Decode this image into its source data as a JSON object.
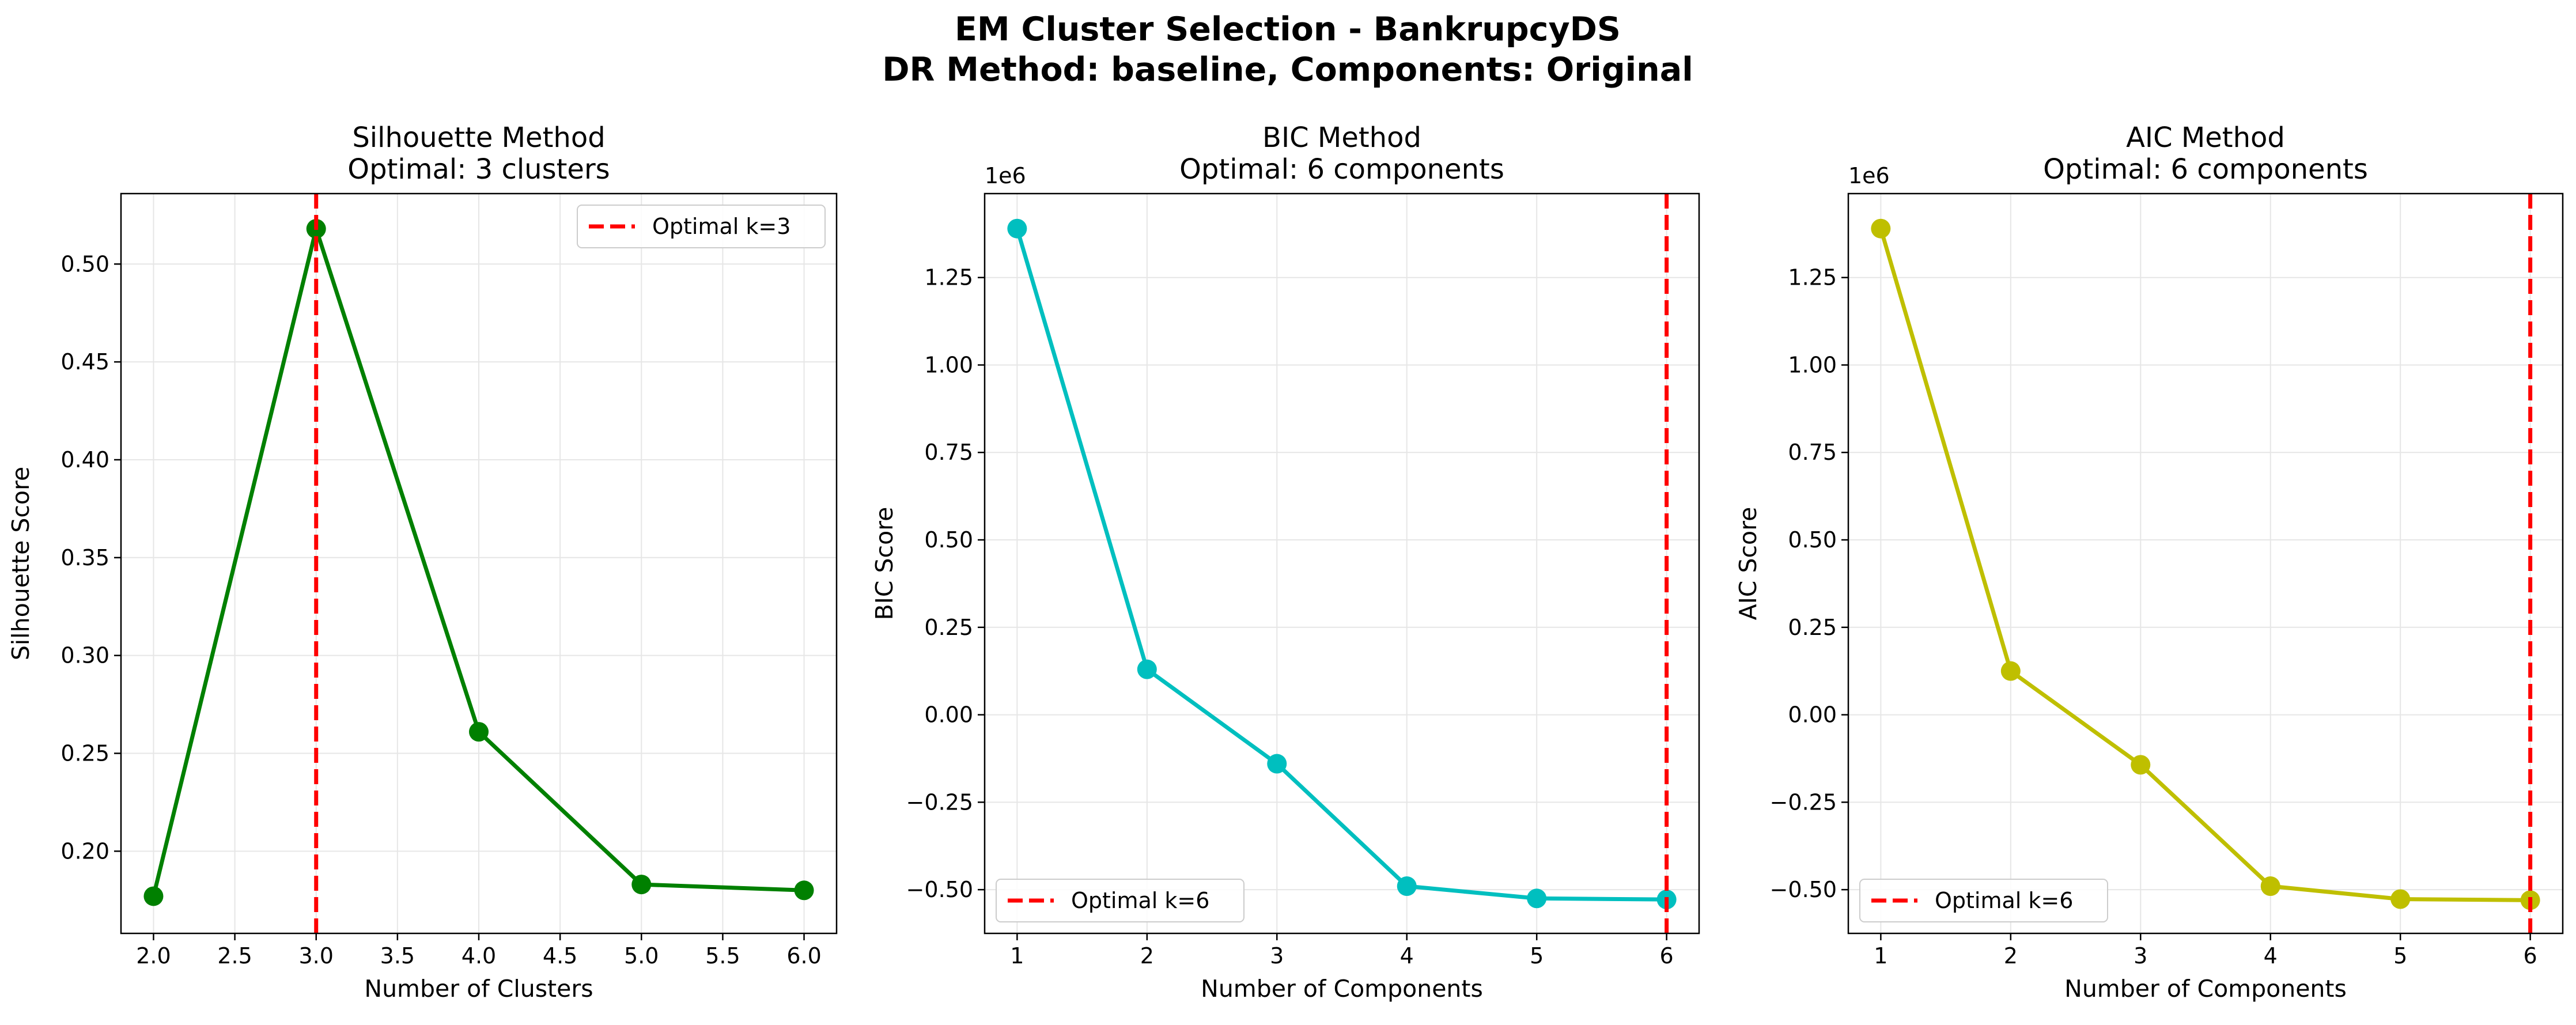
{
  "figure": {
    "title_line1": "EM Cluster Selection - BankrupcyDS",
    "title_line2": "DR Method: baseline, Components: Original"
  },
  "chart_data": [
    {
      "type": "line",
      "title_line1": "Silhouette Method",
      "title_line2": "Optimal: 3 clusters",
      "xlabel": "Number of Clusters",
      "ylabel": "Silhouette Score",
      "x": [
        2,
        3,
        4,
        5,
        6
      ],
      "series": [
        {
          "values": [
            0.177,
            0.518,
            0.261,
            0.183,
            0.18
          ],
          "color": "#008000"
        }
      ],
      "xlim": [
        1.8,
        6.2
      ],
      "ylim": [
        0.158,
        0.536
      ],
      "xticks": [
        2.0,
        2.5,
        3.0,
        3.5,
        4.0,
        4.5,
        5.0,
        5.5,
        6.0
      ],
      "xtick_labels": [
        "2.0",
        "2.5",
        "3.0",
        "3.5",
        "4.0",
        "4.5",
        "5.0",
        "5.5",
        "6.0"
      ],
      "yticks": [
        0.2,
        0.25,
        0.3,
        0.35,
        0.4,
        0.45,
        0.5
      ],
      "ytick_labels": [
        "0.20",
        "0.25",
        "0.30",
        "0.35",
        "0.40",
        "0.45",
        "0.50"
      ],
      "offset_label": "",
      "optimal_x": 3,
      "optimal_color": "#ff0000",
      "legend_label": "Optimal k=3",
      "legend_position": "top-right",
      "grid": true
    },
    {
      "type": "line",
      "title_line1": "BIC Method",
      "title_line2": "Optimal: 6 components",
      "xlabel": "Number of Components",
      "ylabel": "BIC Score",
      "x": [
        1,
        2,
        3,
        4,
        5,
        6
      ],
      "series": [
        {
          "values": [
            1.39,
            0.13,
            -0.14,
            -0.49,
            -0.525,
            -0.528
          ],
          "color": "#00bfbf"
        }
      ],
      "xlim": [
        0.75,
        6.25
      ],
      "ylim": [
        -0.625,
        1.49
      ],
      "xticks": [
        1,
        2,
        3,
        4,
        5,
        6
      ],
      "xtick_labels": [
        "1",
        "2",
        "3",
        "4",
        "5",
        "6"
      ],
      "yticks": [
        -0.5,
        -0.25,
        0.0,
        0.25,
        0.5,
        0.75,
        1.0,
        1.25
      ],
      "ytick_labels": [
        "−0.50",
        "−0.25",
        "0.00",
        "0.25",
        "0.50",
        "0.75",
        "1.00",
        "1.25"
      ],
      "offset_label": "1e6",
      "optimal_x": 6,
      "optimal_color": "#ff0000",
      "legend_label": "Optimal k=6",
      "legend_position": "bottom-left",
      "grid": true
    },
    {
      "type": "line",
      "title_line1": "AIC Method",
      "title_line2": "Optimal: 6 components",
      "xlabel": "Number of Components",
      "ylabel": "AIC Score",
      "x": [
        1,
        2,
        3,
        4,
        5,
        6
      ],
      "series": [
        {
          "values": [
            1.39,
            0.125,
            -0.143,
            -0.49,
            -0.527,
            -0.53
          ],
          "color": "#bfbf00"
        }
      ],
      "xlim": [
        0.75,
        6.25
      ],
      "ylim": [
        -0.625,
        1.49
      ],
      "xticks": [
        1,
        2,
        3,
        4,
        5,
        6
      ],
      "xtick_labels": [
        "1",
        "2",
        "3",
        "4",
        "5",
        "6"
      ],
      "yticks": [
        -0.5,
        -0.25,
        0.0,
        0.25,
        0.5,
        0.75,
        1.0,
        1.25
      ],
      "ytick_labels": [
        "−0.50",
        "−0.25",
        "0.00",
        "0.25",
        "0.50",
        "0.75",
        "1.00",
        "1.25"
      ],
      "offset_label": "1e6",
      "optimal_x": 6,
      "optimal_color": "#ff0000",
      "legend_label": "Optimal k=6",
      "legend_position": "bottom-left",
      "grid": true
    }
  ]
}
